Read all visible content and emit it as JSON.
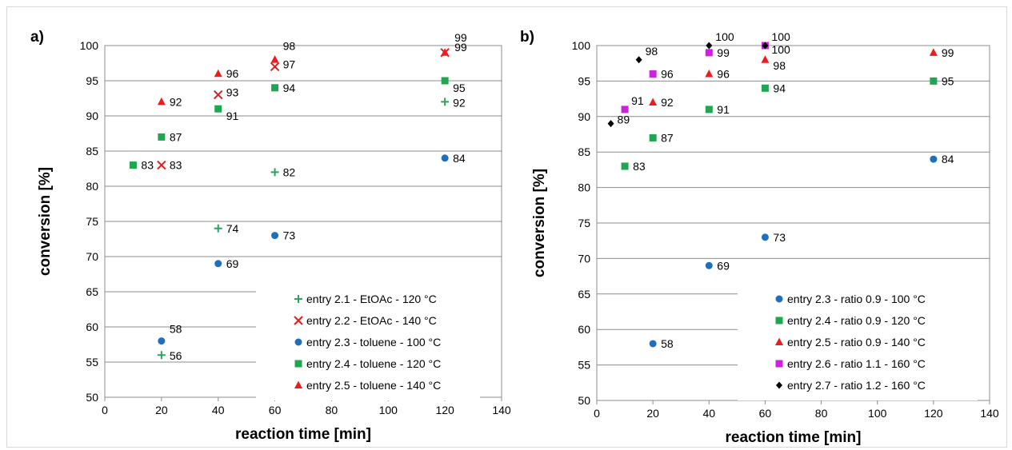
{
  "chart_data": [
    {
      "type": "scatter",
      "panel_label": "a)",
      "xlabel": "reaction time [min]",
      "ylabel": "conversion [%]",
      "xlim": [
        0,
        140
      ],
      "ylim": [
        50,
        100
      ],
      "xticks": [
        0,
        20,
        40,
        60,
        80,
        100,
        120,
        140
      ],
      "yticks": [
        50,
        55,
        60,
        65,
        70,
        75,
        80,
        85,
        90,
        95,
        100
      ],
      "grid": "horizontal",
      "legend_position": "bottom-right",
      "series": [
        {
          "name": "entry 2.1 - EtOAc - 120 °C",
          "marker": "plus",
          "color": "#2ca25f",
          "points": [
            {
              "x": 20,
              "y": 56,
              "label": "56"
            },
            {
              "x": 40,
              "y": 74,
              "label": "74"
            },
            {
              "x": 60,
              "y": 82,
              "label": "82"
            },
            {
              "x": 120,
              "y": 92,
              "label": "92"
            }
          ]
        },
        {
          "name": "entry 2.2 - EtOAc - 140 °C",
          "marker": "cross",
          "color": "#e41a1c",
          "points": [
            {
              "x": 20,
              "y": 83,
              "label": "83"
            },
            {
              "x": 40,
              "y": 93,
              "label": "93"
            },
            {
              "x": 60,
              "y": 97,
              "label": "97"
            },
            {
              "x": 120,
              "y": 99,
              "label": "99"
            }
          ]
        },
        {
          "name": "entry 2.3 - toluene - 100 °C",
          "marker": "circle",
          "color": "#1f6fbf",
          "points": [
            {
              "x": 20,
              "y": 58,
              "label": "58"
            },
            {
              "x": 40,
              "y": 69,
              "label": "69"
            },
            {
              "x": 60,
              "y": 73,
              "label": "73"
            },
            {
              "x": 120,
              "y": 84,
              "label": "84"
            }
          ]
        },
        {
          "name": "entry 2.4 - toluene - 120 °C",
          "marker": "square",
          "color": "#1ea650",
          "points": [
            {
              "x": 10,
              "y": 83,
              "label": "83"
            },
            {
              "x": 20,
              "y": 87,
              "label": "87"
            },
            {
              "x": 40,
              "y": 91,
              "label": "91"
            },
            {
              "x": 60,
              "y": 94,
              "label": "94"
            },
            {
              "x": 120,
              "y": 95,
              "label": "95"
            }
          ]
        },
        {
          "name": "entry 2.5 - toluene - 140 °C",
          "marker": "triangle",
          "color": "#ee1c1c",
          "points": [
            {
              "x": 20,
              "y": 92,
              "label": "92"
            },
            {
              "x": 40,
              "y": 96,
              "label": "96"
            },
            {
              "x": 60,
              "y": 98,
              "label": "98"
            },
            {
              "x": 120,
              "y": 99,
              "label": "99"
            }
          ]
        }
      ]
    },
    {
      "type": "scatter",
      "panel_label": "b)",
      "xlabel": "reaction time [min]",
      "ylabel": "conversion [%]",
      "xlim": [
        0,
        140
      ],
      "ylim": [
        50,
        100
      ],
      "xticks": [
        0,
        20,
        40,
        60,
        80,
        100,
        120,
        140
      ],
      "yticks": [
        50,
        55,
        60,
        65,
        70,
        75,
        80,
        85,
        90,
        95,
        100
      ],
      "grid": "horizontal",
      "legend_position": "bottom-right",
      "series": [
        {
          "name": "entry 2.3 - ratio 0.9 - 100 °C",
          "marker": "circle",
          "color": "#1f6fbf",
          "points": [
            {
              "x": 20,
              "y": 58,
              "label": "58"
            },
            {
              "x": 40,
              "y": 69,
              "label": "69"
            },
            {
              "x": 60,
              "y": 73,
              "label": "73"
            },
            {
              "x": 120,
              "y": 84,
              "label": "84"
            }
          ]
        },
        {
          "name": "entry 2.4 - ratio 0.9 - 120 °C",
          "marker": "square",
          "color": "#1ea650",
          "points": [
            {
              "x": 10,
              "y": 83,
              "label": "83"
            },
            {
              "x": 20,
              "y": 87,
              "label": "87"
            },
            {
              "x": 40,
              "y": 91,
              "label": "91"
            },
            {
              "x": 60,
              "y": 94,
              "label": "94"
            },
            {
              "x": 120,
              "y": 95,
              "label": "95"
            }
          ]
        },
        {
          "name": "entry 2.5 - ratio 0.9 - 140 °C",
          "marker": "triangle",
          "color": "#ee1c1c",
          "points": [
            {
              "x": 20,
              "y": 92,
              "label": "92"
            },
            {
              "x": 40,
              "y": 96,
              "label": "96"
            },
            {
              "x": 60,
              "y": 98,
              "label": "98"
            },
            {
              "x": 120,
              "y": 99,
              "label": "99"
            }
          ]
        },
        {
          "name": "entry 2.6 - ratio 1.1 - 160 °C",
          "marker": "square",
          "color": "#cc22dd",
          "points": [
            {
              "x": 10,
              "y": 91,
              "label": "91"
            },
            {
              "x": 20,
              "y": 96,
              "label": "96"
            },
            {
              "x": 40,
              "y": 99,
              "label": "99"
            },
            {
              "x": 60,
              "y": 100,
              "label": "100"
            }
          ]
        },
        {
          "name": "entry 2.7 - ratio 1.2 - 160 °C",
          "marker": "diamond",
          "color": "#000000",
          "points": [
            {
              "x": 5,
              "y": 89,
              "label": "89"
            },
            {
              "x": 15,
              "y": 98,
              "label": "98"
            },
            {
              "x": 40,
              "y": 100,
              "label": "100"
            },
            {
              "x": 60,
              "y": 100,
              "label": "100"
            }
          ]
        }
      ]
    }
  ]
}
